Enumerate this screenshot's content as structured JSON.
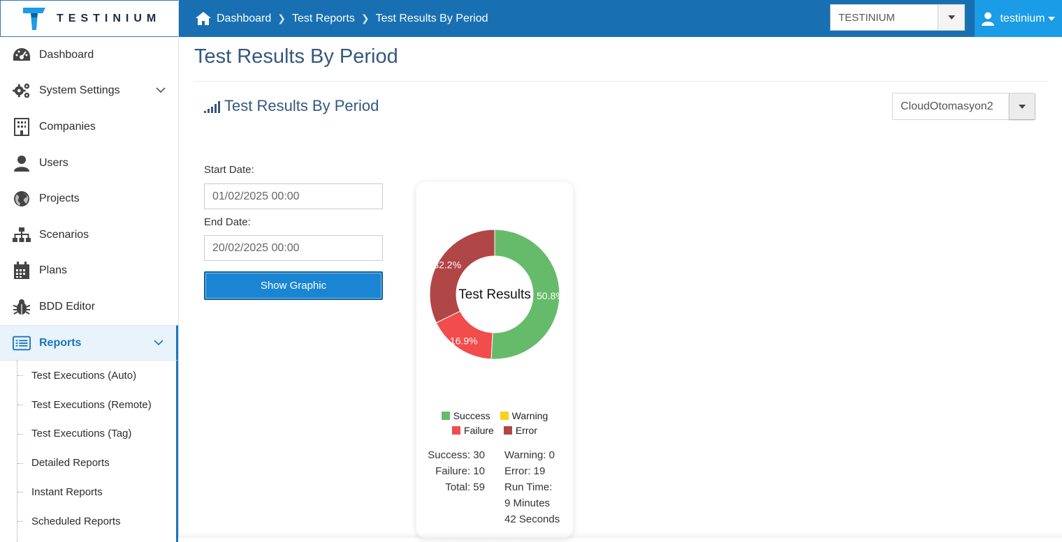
{
  "brand": {
    "name": "TESTINIUM"
  },
  "sidebar": {
    "items": [
      {
        "label": "Dashboard",
        "icon": "dashboard-gauge-icon"
      },
      {
        "label": "System Settings",
        "icon": "gears-icon"
      },
      {
        "label": "Companies",
        "icon": "building-icon"
      },
      {
        "label": "Users",
        "icon": "user-icon"
      },
      {
        "label": "Projects",
        "icon": "globe-icon"
      },
      {
        "label": "Scenarios",
        "icon": "sitemap-icon"
      },
      {
        "label": "Plans",
        "icon": "calendar-icon"
      },
      {
        "label": "BDD Editor",
        "icon": "bug-icon"
      },
      {
        "label": "Reports",
        "icon": "list-icon"
      }
    ],
    "reports_sub": [
      {
        "label": "Test Executions (Auto)"
      },
      {
        "label": "Test Executions (Remote)"
      },
      {
        "label": "Test Executions (Tag)"
      },
      {
        "label": "Detailed Reports"
      },
      {
        "label": "Instant Reports"
      },
      {
        "label": "Scheduled Reports"
      }
    ]
  },
  "header": {
    "breadcrumb": [
      "Dashboard",
      "Test Reports",
      "Test Results By Period"
    ],
    "company_select": "TESTINIUM",
    "user": "testinium"
  },
  "page": {
    "title": "Test Results By Period",
    "section_title": "Test Results By Period",
    "project_select": "CloudOtomasyon2"
  },
  "form": {
    "start_label": "Start Date:",
    "start_value": "01/02/2025 00:00",
    "end_label": "End Date:",
    "end_value": "20/02/2025 00:00",
    "button": "Show Graphic"
  },
  "colors": {
    "success": "#66bb6a",
    "warning": "#f9d01a",
    "failure": "#f24c4c",
    "error": "#b14646",
    "primary": "#1870b2"
  },
  "chart_data": {
    "type": "pie",
    "title": "Test Results",
    "series": [
      {
        "name": "Success",
        "value": 30,
        "label": "50.8%"
      },
      {
        "name": "Warning",
        "value": 0,
        "label": "0%"
      },
      {
        "name": "Failure",
        "value": 10,
        "label": "16.9%"
      },
      {
        "name": "Error",
        "value": 19,
        "label": "32.2%"
      }
    ],
    "legend_position": "bottom"
  },
  "stats": {
    "success": "Success: 30",
    "failure": "Failure: 10",
    "total": "Total: 59",
    "warning": "Warning: 0",
    "error": "Error: 19",
    "runtime_label": "Run Time:",
    "runtime_minutes": "9 Minutes",
    "runtime_seconds": "42 Seconds"
  }
}
